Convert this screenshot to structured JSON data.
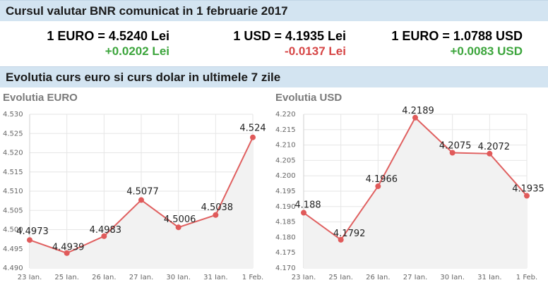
{
  "header": {
    "title": "Cursul valutar BNR comunicat in 1 februarie 2017"
  },
  "rates": [
    {
      "label": "1 EURO = 4.5240 Lei",
      "change": "+0.0202 Lei",
      "trend": "up"
    },
    {
      "label": "1 USD = 4.1935 Lei",
      "change": "-0.0137 Lei",
      "trend": "down"
    },
    {
      "label": "1 EURO = 1.0788 USD",
      "change": "+0.0083 USD",
      "trend": "up"
    }
  ],
  "evolution": {
    "title": "Evolutia curs euro si curs dolar in ultimele 7 zile"
  },
  "colors": {
    "line": "#e06060",
    "point": "#e05a5a",
    "fill": "#f2f2f2",
    "grid": "#e6e6e6",
    "up": "#3ca53c",
    "down": "#d64545"
  },
  "chart_data": [
    {
      "type": "area",
      "title": "Evolutia EURO",
      "categories": [
        "23 Ian.",
        "25 Ian.",
        "26 Ian.",
        "27 Ian.",
        "30 Ian.",
        "31 Ian.",
        "1 Feb."
      ],
      "values": [
        4.4973,
        4.4939,
        4.4983,
        4.5077,
        4.5006,
        4.5038,
        4.524
      ],
      "labels": [
        "4.4973",
        "4.4939",
        "4.4983",
        "4.5077",
        "4.5006",
        "4.5038",
        "4.524"
      ],
      "ylim": [
        4.49,
        4.53
      ],
      "yticks": [
        "4.490",
        "4.495",
        "4.500",
        "4.505",
        "4.510",
        "4.515",
        "4.520",
        "4.525",
        "4.530"
      ],
      "grid": true
    },
    {
      "type": "area",
      "title": "Evolutia USD",
      "categories": [
        "23 Ian.",
        "25 Ian.",
        "26 Ian.",
        "27 Ian.",
        "30 Ian.",
        "31 Ian.",
        "1 Feb."
      ],
      "values": [
        4.188,
        4.1792,
        4.1966,
        4.2189,
        4.2075,
        4.2072,
        4.1935
      ],
      "labels": [
        "4.188",
        "4.1792",
        "4.1966",
        "4.2189",
        "4.2075",
        "4.2072",
        "4.1935"
      ],
      "ylim": [
        4.17,
        4.22
      ],
      "yticks": [
        "4.170",
        "4.175",
        "4.180",
        "4.185",
        "4.190",
        "4.195",
        "4.200",
        "4.205",
        "4.210",
        "4.215",
        "4.220"
      ],
      "grid": true
    }
  ]
}
